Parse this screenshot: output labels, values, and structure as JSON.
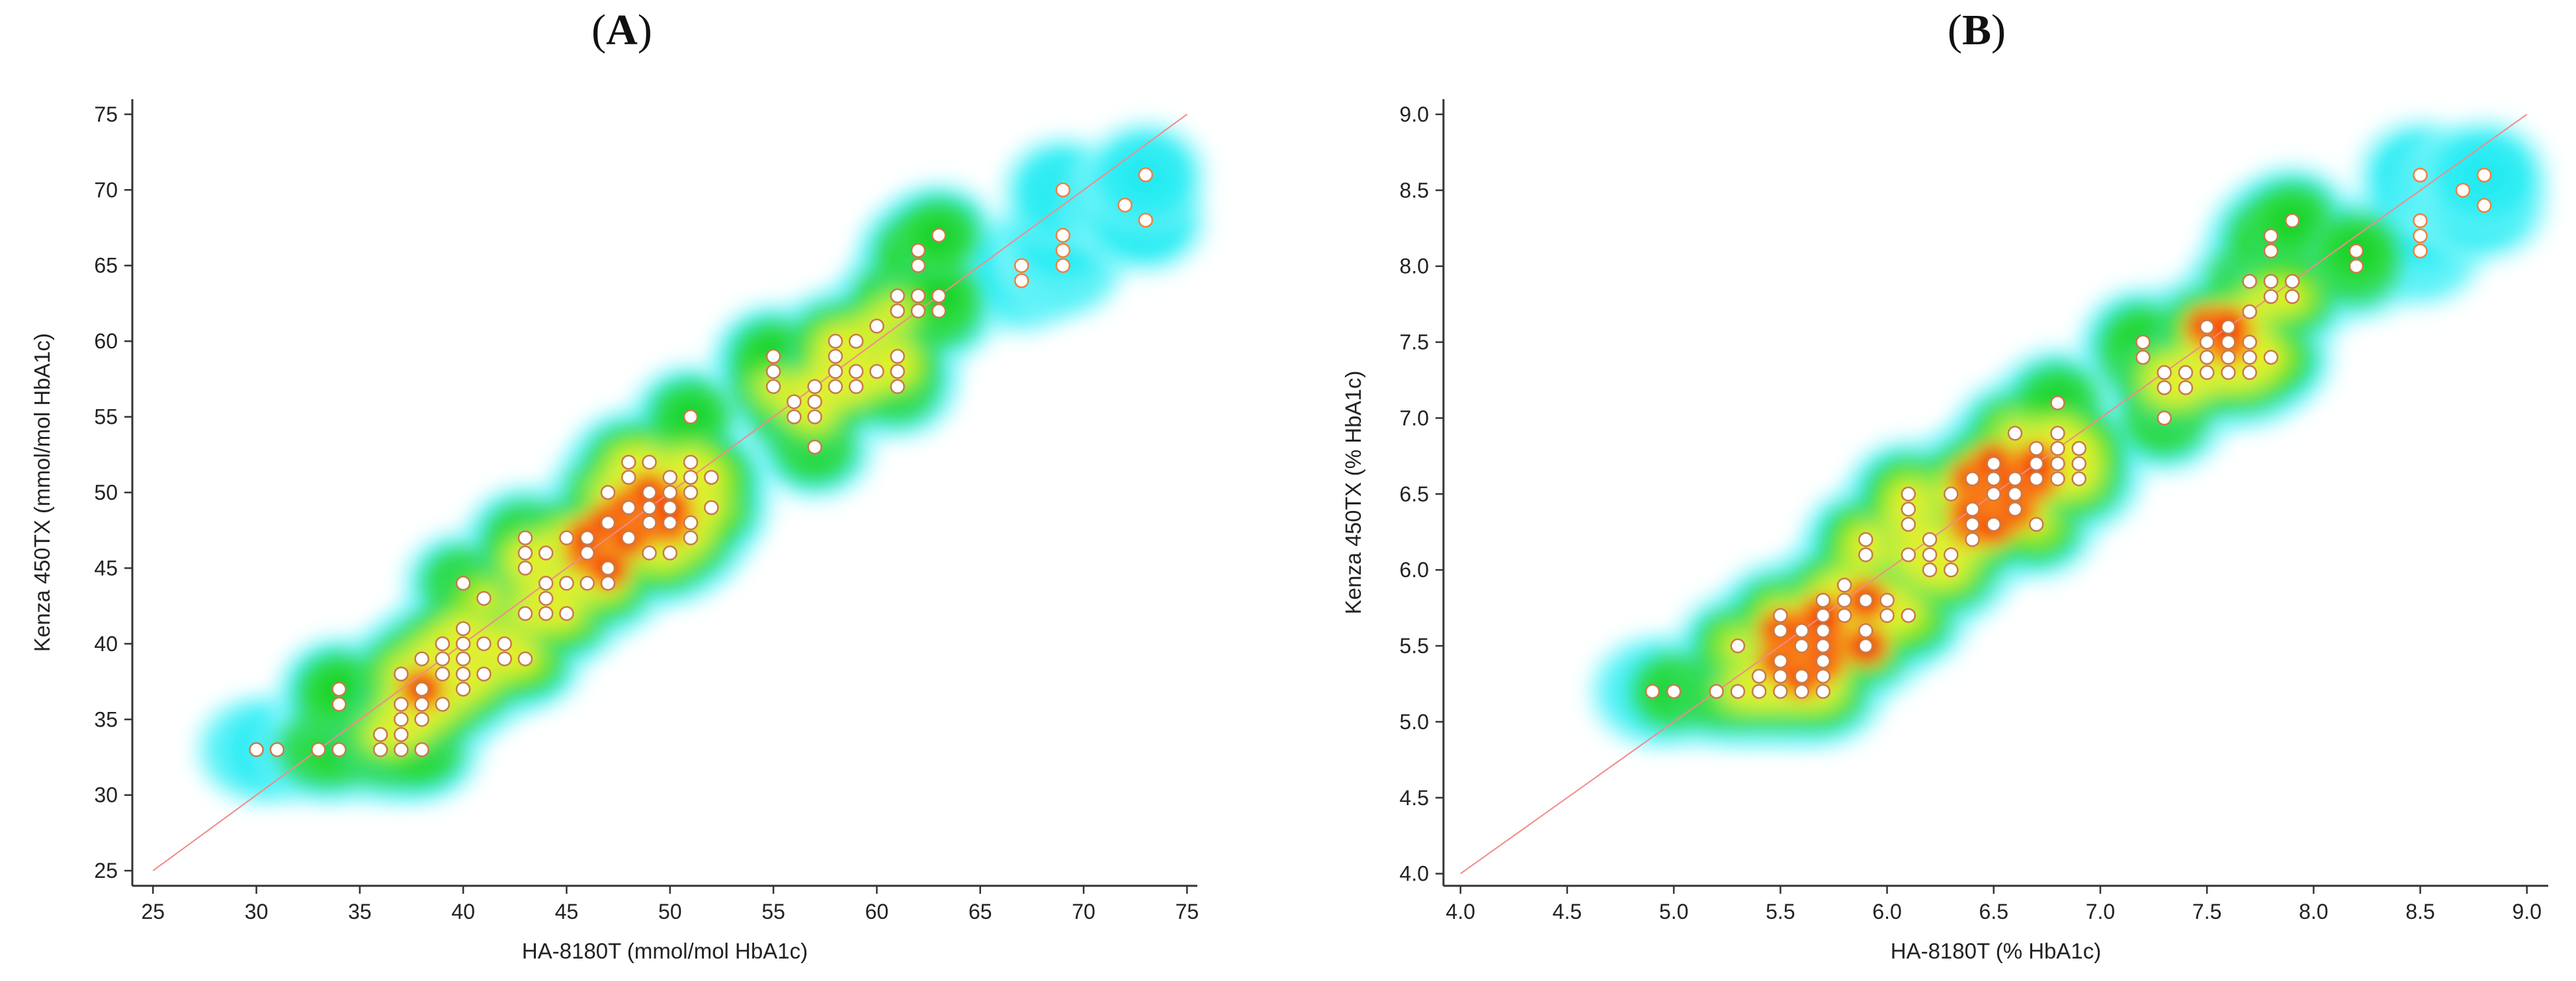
{
  "chart_data": [
    {
      "panel_label": "A",
      "type": "scatter",
      "overlay": "density heatmap",
      "xlabel": "HA-8180T (mmol/mol HbA1c)",
      "ylabel": "Kenza 450TX (mmol/mol HbA1c)",
      "xlim": [
        24,
        75.5
      ],
      "ylim": [
        24,
        76
      ],
      "xticks": [
        25,
        30,
        35,
        40,
        45,
        50,
        55,
        60,
        65,
        70,
        75
      ],
      "yticks": [
        25,
        30,
        35,
        40,
        45,
        50,
        55,
        60,
        65,
        70,
        75
      ],
      "identity_line": [
        [
          25,
          25
        ],
        [
          75,
          75
        ]
      ],
      "grid": false,
      "colors": {
        "point_fill": "#ffffff",
        "point_edge": "#c87a4a",
        "outlier_edge": "#f08040",
        "identity_line": "#f28a8a",
        "axis": "#333333"
      },
      "points": [
        [
          30,
          33
        ],
        [
          31,
          33
        ],
        [
          33,
          33
        ],
        [
          34,
          33
        ],
        [
          34,
          36
        ],
        [
          34,
          37
        ],
        [
          36,
          33
        ],
        [
          36,
          34
        ],
        [
          37,
          33
        ],
        [
          37,
          34
        ],
        [
          37,
          35
        ],
        [
          37,
          36
        ],
        [
          37,
          38
        ],
        [
          38,
          33
        ],
        [
          38,
          35
        ],
        [
          38,
          36
        ],
        [
          38,
          37
        ],
        [
          38,
          39
        ],
        [
          39,
          36
        ],
        [
          39,
          38
        ],
        [
          39,
          39
        ],
        [
          39,
          40
        ],
        [
          40,
          37
        ],
        [
          40,
          38
        ],
        [
          40,
          39
        ],
        [
          40,
          40
        ],
        [
          40,
          41
        ],
        [
          40,
          44
        ],
        [
          41,
          38
        ],
        [
          41,
          40
        ],
        [
          41,
          43
        ],
        [
          42,
          39
        ],
        [
          42,
          40
        ],
        [
          43,
          39
        ],
        [
          43,
          42
        ],
        [
          43,
          45
        ],
        [
          43,
          46
        ],
        [
          43,
          47
        ],
        [
          44,
          42
        ],
        [
          44,
          43
        ],
        [
          44,
          44
        ],
        [
          44,
          46
        ],
        [
          45,
          42
        ],
        [
          45,
          44
        ],
        [
          45,
          47
        ],
        [
          46,
          44
        ],
        [
          46,
          46
        ],
        [
          46,
          47
        ],
        [
          47,
          44
        ],
        [
          47,
          45
        ],
        [
          47,
          48
        ],
        [
          47,
          50
        ],
        [
          48,
          47
        ],
        [
          48,
          49
        ],
        [
          48,
          51
        ],
        [
          48,
          52
        ],
        [
          49,
          46
        ],
        [
          49,
          48
        ],
        [
          49,
          49
        ],
        [
          49,
          50
        ],
        [
          49,
          52
        ],
        [
          50,
          46
        ],
        [
          50,
          48
        ],
        [
          50,
          49
        ],
        [
          50,
          50
        ],
        [
          50,
          51
        ],
        [
          51,
          47
        ],
        [
          51,
          48
        ],
        [
          51,
          50
        ],
        [
          51,
          51
        ],
        [
          51,
          52
        ],
        [
          51,
          55
        ],
        [
          52,
          49
        ],
        [
          52,
          51
        ],
        [
          55,
          57
        ],
        [
          55,
          58
        ],
        [
          55,
          59
        ],
        [
          56,
          55
        ],
        [
          56,
          56
        ],
        [
          57,
          53
        ],
        [
          57,
          55
        ],
        [
          57,
          56
        ],
        [
          57,
          57
        ],
        [
          58,
          57
        ],
        [
          58,
          58
        ],
        [
          58,
          59
        ],
        [
          58,
          60
        ],
        [
          59,
          57
        ],
        [
          59,
          58
        ],
        [
          59,
          60
        ],
        [
          60,
          58
        ],
        [
          60,
          61
        ],
        [
          61,
          57
        ],
        [
          61,
          58
        ],
        [
          61,
          59
        ],
        [
          61,
          62
        ],
        [
          61,
          63
        ],
        [
          62,
          62
        ],
        [
          62,
          63
        ],
        [
          62,
          65
        ],
        [
          62,
          66
        ],
        [
          63,
          62
        ],
        [
          63,
          63
        ],
        [
          63,
          67
        ]
      ],
      "outliers": [
        [
          67,
          64
        ],
        [
          67,
          65
        ],
        [
          69,
          65
        ],
        [
          69,
          66
        ],
        [
          69,
          67
        ],
        [
          69,
          70
        ],
        [
          72,
          69
        ],
        [
          73,
          68
        ],
        [
          73,
          71
        ]
      ]
    },
    {
      "panel_label": "B",
      "type": "scatter",
      "overlay": "density heatmap",
      "xlabel": "HA-8180T (% HbA1c)",
      "ylabel": "Kenza 450TX (% HbA1c)",
      "xlim": [
        3.92,
        9.1
      ],
      "ylim": [
        3.92,
        9.1
      ],
      "xticks": [
        "4.0",
        "4.5",
        "5.0",
        "5.5",
        "6.0",
        "6.5",
        "7.0",
        "7.5",
        "8.0",
        "8.5",
        "9.0"
      ],
      "yticks": [
        "4.0",
        "4.5",
        "5.0",
        "5.5",
        "6.0",
        "6.5",
        "7.0",
        "7.5",
        "8.0",
        "8.5",
        "9.0"
      ],
      "identity_line": [
        [
          4.0,
          4.0
        ],
        [
          9.0,
          9.0
        ]
      ],
      "grid": false,
      "colors": {
        "point_fill": "#ffffff",
        "point_edge": "#c87a4a",
        "outlier_edge": "#f08040",
        "identity_line": "#f28a8a",
        "axis": "#333333"
      },
      "points": [
        [
          4.9,
          5.2
        ],
        [
          5.0,
          5.2
        ],
        [
          5.2,
          5.2
        ],
        [
          5.3,
          5.2
        ],
        [
          5.3,
          5.5
        ],
        [
          5.4,
          5.2
        ],
        [
          5.4,
          5.3
        ],
        [
          5.5,
          5.2
        ],
        [
          5.5,
          5.3
        ],
        [
          5.5,
          5.4
        ],
        [
          5.5,
          5.6
        ],
        [
          5.5,
          5.7
        ],
        [
          5.6,
          5.2
        ],
        [
          5.6,
          5.3
        ],
        [
          5.6,
          5.5
        ],
        [
          5.6,
          5.6
        ],
        [
          5.7,
          5.2
        ],
        [
          5.7,
          5.3
        ],
        [
          5.7,
          5.4
        ],
        [
          5.7,
          5.5
        ],
        [
          5.7,
          5.6
        ],
        [
          5.7,
          5.7
        ],
        [
          5.7,
          5.8
        ],
        [
          5.8,
          5.7
        ],
        [
          5.8,
          5.8
        ],
        [
          5.8,
          5.9
        ],
        [
          5.9,
          5.5
        ],
        [
          5.9,
          5.6
        ],
        [
          5.9,
          5.8
        ],
        [
          5.9,
          6.1
        ],
        [
          5.9,
          6.2
        ],
        [
          6.0,
          5.7
        ],
        [
          6.0,
          5.8
        ],
        [
          6.1,
          5.7
        ],
        [
          6.1,
          6.1
        ],
        [
          6.1,
          6.3
        ],
        [
          6.1,
          6.4
        ],
        [
          6.1,
          6.5
        ],
        [
          6.2,
          6.0
        ],
        [
          6.2,
          6.1
        ],
        [
          6.2,
          6.2
        ],
        [
          6.3,
          6.0
        ],
        [
          6.3,
          6.1
        ],
        [
          6.3,
          6.5
        ],
        [
          6.4,
          6.2
        ],
        [
          6.4,
          6.3
        ],
        [
          6.4,
          6.4
        ],
        [
          6.4,
          6.6
        ],
        [
          6.5,
          6.3
        ],
        [
          6.5,
          6.5
        ],
        [
          6.5,
          6.6
        ],
        [
          6.5,
          6.7
        ],
        [
          6.6,
          6.4
        ],
        [
          6.6,
          6.5
        ],
        [
          6.6,
          6.6
        ],
        [
          6.6,
          6.9
        ],
        [
          6.7,
          6.3
        ],
        [
          6.7,
          6.6
        ],
        [
          6.7,
          6.7
        ],
        [
          6.7,
          6.8
        ],
        [
          6.8,
          6.6
        ],
        [
          6.8,
          6.7
        ],
        [
          6.8,
          6.8
        ],
        [
          6.8,
          6.9
        ],
        [
          6.8,
          7.1
        ],
        [
          6.9,
          6.6
        ],
        [
          6.9,
          6.7
        ],
        [
          6.9,
          6.8
        ],
        [
          7.2,
          7.4
        ],
        [
          7.2,
          7.5
        ],
        [
          7.3,
          7.0
        ],
        [
          7.3,
          7.2
        ],
        [
          7.3,
          7.3
        ],
        [
          7.4,
          7.2
        ],
        [
          7.4,
          7.3
        ],
        [
          7.5,
          7.3
        ],
        [
          7.5,
          7.4
        ],
        [
          7.5,
          7.5
        ],
        [
          7.5,
          7.6
        ],
        [
          7.6,
          7.3
        ],
        [
          7.6,
          7.4
        ],
        [
          7.6,
          7.5
        ],
        [
          7.6,
          7.6
        ],
        [
          7.7,
          7.3
        ],
        [
          7.7,
          7.4
        ],
        [
          7.7,
          7.5
        ],
        [
          7.7,
          7.7
        ],
        [
          7.7,
          7.9
        ],
        [
          7.8,
          7.4
        ],
        [
          7.8,
          7.8
        ],
        [
          7.8,
          7.9
        ],
        [
          7.8,
          8.1
        ],
        [
          7.8,
          8.2
        ],
        [
          7.9,
          7.8
        ],
        [
          7.9,
          7.9
        ],
        [
          7.9,
          8.3
        ],
        [
          8.2,
          8.0
        ],
        [
          8.2,
          8.1
        ]
      ],
      "outliers": [
        [
          8.5,
          8.1
        ],
        [
          8.5,
          8.2
        ],
        [
          8.5,
          8.3
        ],
        [
          8.5,
          8.6
        ],
        [
          8.7,
          8.5
        ],
        [
          8.8,
          8.4
        ],
        [
          8.8,
          8.6
        ]
      ]
    }
  ]
}
